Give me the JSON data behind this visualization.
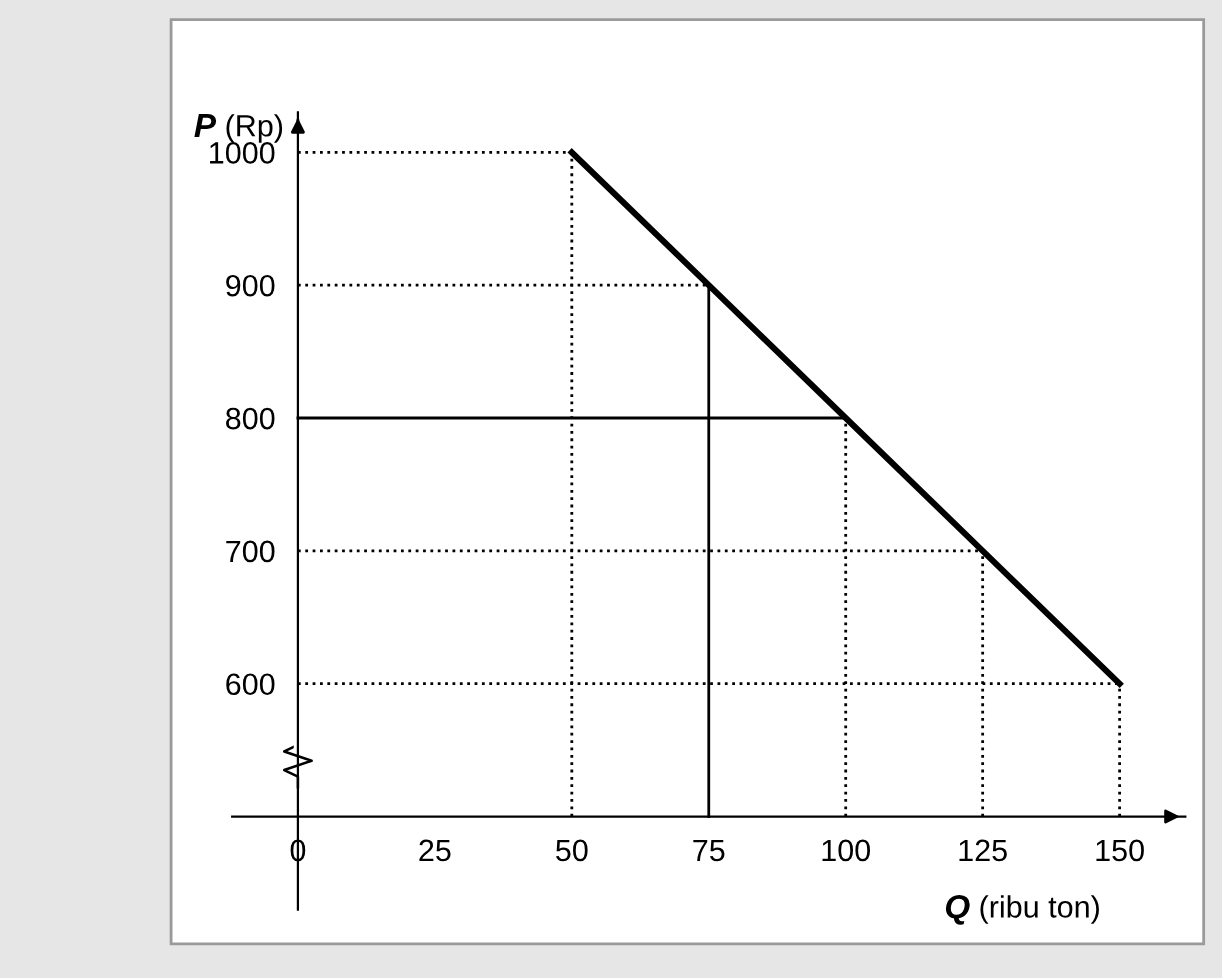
{
  "chart_data": {
    "type": "line",
    "xlabel": "Q (ribu ton)",
    "ylabel": "P (Rp)",
    "series": [
      {
        "x": [
          50,
          75,
          100,
          125,
          150
        ],
        "values": [
          1000,
          900,
          800,
          700,
          600
        ],
        "color": "#000000"
      }
    ],
    "xlim": [
      -12,
      162
    ],
    "ylim": [
      430,
      1030
    ],
    "xticks": [
      0,
      25,
      50,
      75,
      100,
      125,
      150
    ],
    "yticks": [
      600,
      700,
      800,
      900,
      1000
    ],
    "ref_lines": [
      {
        "axis": "y",
        "value": 1000,
        "label": null,
        "line_style": "dotted"
      },
      {
        "axis": "y",
        "value": 900,
        "label": null,
        "line_style": "dotted"
      },
      {
        "axis": "y",
        "value": 800,
        "label": null,
        "line_style": "solid"
      },
      {
        "axis": "y",
        "value": 700,
        "label": null,
        "line_style": "dotted"
      },
      {
        "axis": "y",
        "value": 600,
        "label": null,
        "line_style": "dotted"
      },
      {
        "axis": "x",
        "value": 50,
        "label": null,
        "line_style": "dotted"
      },
      {
        "axis": "x",
        "value": 75,
        "label": null,
        "line_style": "solid"
      },
      {
        "axis": "x",
        "value": 100,
        "label": null,
        "line_style": "dotted"
      },
      {
        "axis": "x",
        "value": 125,
        "label": null,
        "line_style": "dotted"
      },
      {
        "axis": "x",
        "value": 150,
        "label": null,
        "line_style": "dotted"
      }
    ],
    "grid": false,
    "legend": false,
    "marker": "none",
    "line_style": "solid"
  }
}
